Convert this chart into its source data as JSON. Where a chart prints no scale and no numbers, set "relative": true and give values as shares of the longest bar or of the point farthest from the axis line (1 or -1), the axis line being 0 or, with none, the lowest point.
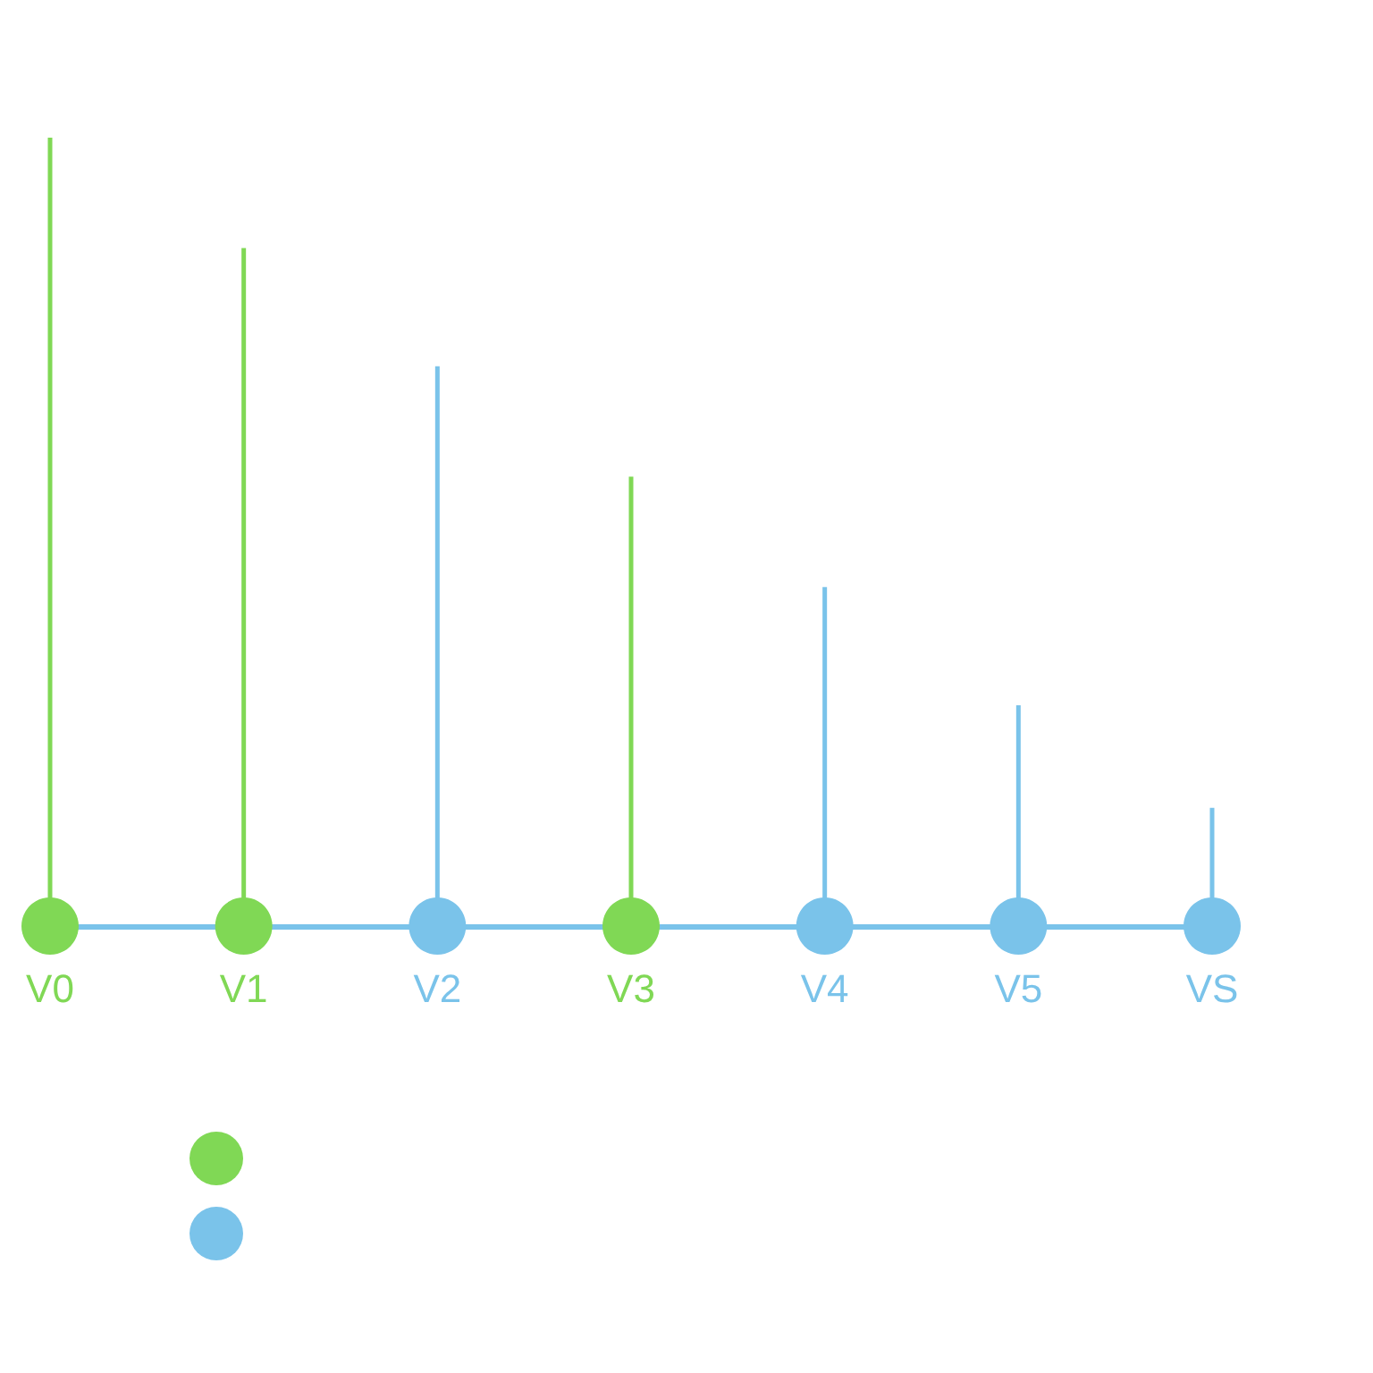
{
  "chart_data": {
    "type": "bar",
    "relative": true,
    "categories": [
      "V0",
      "V1",
      "V2",
      "V3",
      "V4",
      "V5",
      "VS"
    ],
    "series": [
      {
        "color": "#80d855",
        "values": [
          1,
          0.86,
          null,
          0.57,
          null,
          null,
          null
        ]
      },
      {
        "color": "#7ac3ea",
        "values": [
          null,
          null,
          0.71,
          null,
          0.43,
          0.28,
          0.15
        ]
      },
      {
        "type": "scatter",
        "x": [
          "V0",
          "V1",
          "V2",
          "V3",
          "V4",
          "V5",
          "VS"
        ],
        "values": [
          0,
          0,
          0,
          0,
          0,
          0,
          0
        ],
        "colors": [
          "#80d855",
          "#80d855",
          "#7ac3ea",
          "#80d855",
          "#7ac3ea",
          "#7ac3ea",
          "#7ac3ea"
        ]
      }
    ],
    "marker": "circle"
  }
}
